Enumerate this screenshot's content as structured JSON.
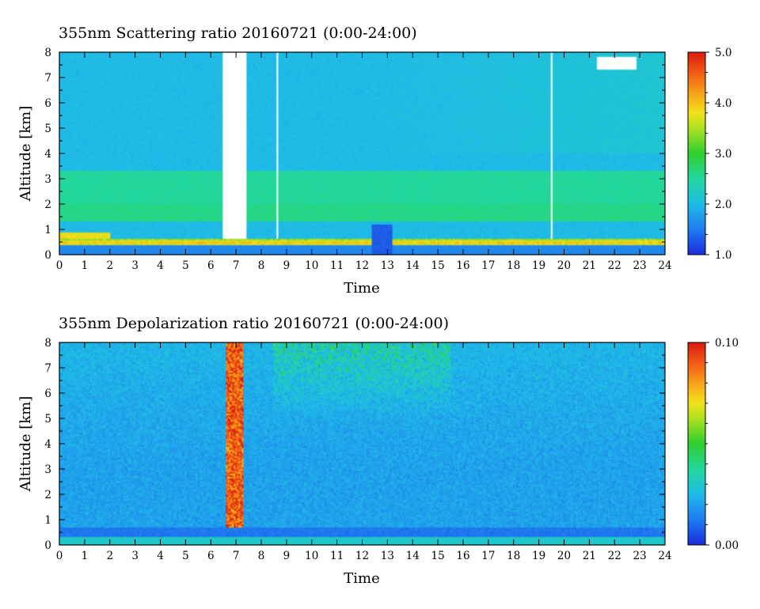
{
  "chart_data": [
    {
      "type": "heatmap",
      "title": "355nm Scattering ratio  20160721 (0:00-24:00)",
      "xlabel": "Time",
      "ylabel": "Altitude [km]",
      "xlim": [
        0,
        24
      ],
      "ylim": [
        0,
        8
      ],
      "x_ticks": [
        0,
        1,
        2,
        3,
        4,
        5,
        6,
        7,
        8,
        9,
        10,
        11,
        12,
        13,
        14,
        15,
        16,
        17,
        18,
        19,
        20,
        21,
        22,
        23,
        24
      ],
      "y_ticks": [
        0,
        1,
        2,
        3,
        4,
        5,
        6,
        7,
        8
      ],
      "colorbar": {
        "range": [
          1.0,
          5.0
        ],
        "tick_values": [
          1.0,
          2.0,
          3.0,
          4.0,
          5.0
        ],
        "tick_labels": [
          "1.0",
          "2.0",
          "3.0",
          "4.0",
          "5.0"
        ],
        "placement": "right"
      },
      "features": {
        "background_level": 2.0,
        "enhanced_layers": [
          {
            "alt_range": [
              1.3,
              2.0
            ],
            "value": 2.6
          },
          {
            "alt_range": [
              2.0,
              3.3
            ],
            "value": 2.5
          }
        ],
        "surface_layer": {
          "alt_range": [
            0.35,
            0.6
          ],
          "value": 4.0
        },
        "no_data_periods": [
          {
            "time": [
              6.5,
              7.4
            ],
            "alt": [
              0.6,
              8.0
            ]
          },
          {
            "time": [
              8.6,
              8.7
            ],
            "alt": [
              0.6,
              8.0
            ]
          },
          {
            "time": [
              19.5,
              19.55
            ],
            "alt": [
              0.6,
              8.0
            ]
          }
        ],
        "cloud": {
          "time": [
            21.3,
            22.9
          ],
          "alt": [
            7.3,
            7.8
          ]
        }
      }
    },
    {
      "type": "heatmap",
      "title": "355nm Depolarization ratio  20160721 (0:00-24:00)",
      "xlabel": "Time",
      "ylabel": "Altitude [km]",
      "xlim": [
        0,
        24
      ],
      "ylim": [
        0,
        8
      ],
      "x_ticks": [
        0,
        1,
        2,
        3,
        4,
        5,
        6,
        7,
        8,
        9,
        10,
        11,
        12,
        13,
        14,
        15,
        16,
        17,
        18,
        19,
        20,
        21,
        22,
        23,
        24
      ],
      "y_ticks": [
        0,
        1,
        2,
        3,
        4,
        5,
        6,
        7,
        8
      ],
      "colorbar": {
        "range": [
          0.0,
          0.1
        ],
        "tick_values": [
          0.0,
          0.1
        ],
        "tick_labels": [
          "0.00",
          "0.10"
        ],
        "placement": "right"
      },
      "features": {
        "background_level": 0.02,
        "high_depol_column": {
          "time": [
            6.6,
            7.3
          ],
          "alt": [
            0.5,
            8.0
          ],
          "value": 0.09
        },
        "noisy_upper_region": {
          "time": [
            8.5,
            15.5
          ],
          "alt": [
            5.0,
            8.0
          ],
          "value": 0.05
        },
        "surface_layer": {
          "alt_range": [
            0.0,
            0.3
          ],
          "value": 0.03
        }
      }
    }
  ]
}
